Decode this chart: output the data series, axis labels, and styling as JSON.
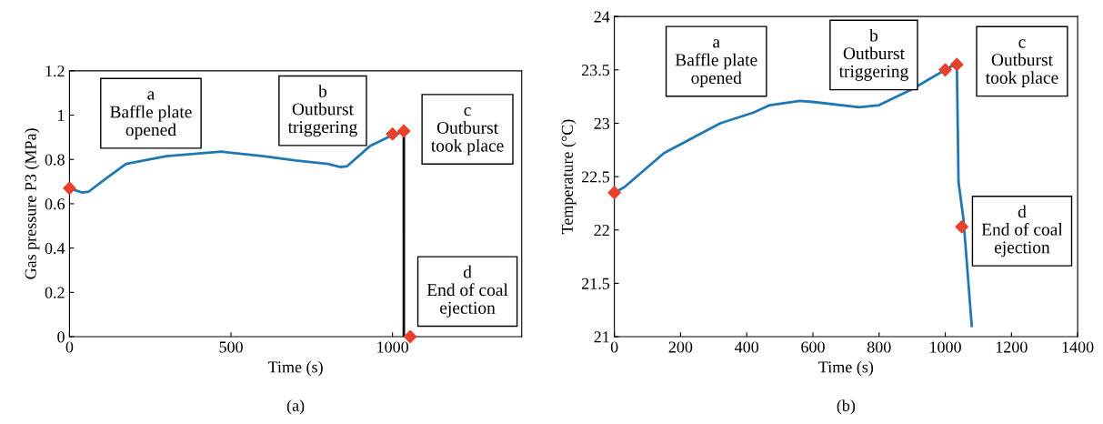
{
  "chart_data": [
    {
      "type": "line",
      "xlabel": "Time (s)",
      "ylabel": "Gas pressure P3 (MPa)",
      "xlim": [
        0,
        1400
      ],
      "xticks": [
        0,
        500,
        1000
      ],
      "ylim": [
        0,
        1.2
      ],
      "yticks": [
        0,
        0.2,
        0.4,
        0.6,
        0.8,
        1,
        1.2
      ],
      "grid": false,
      "legend": false,
      "series": [
        {
          "color": "#1f77b4",
          "x": [
            0,
            40,
            60,
            100,
            175,
            300,
            470,
            600,
            700,
            800,
            840,
            860,
            930,
            1000,
            1035
          ],
          "values": [
            0.67,
            0.65,
            0.655,
            0.7,
            0.78,
            0.815,
            0.835,
            0.815,
            0.795,
            0.78,
            0.765,
            0.77,
            0.86,
            0.91,
            0.925
          ]
        },
        {
          "type": "line",
          "color": "#000000",
          "x": [
            1035,
            1035
          ],
          "values": [
            0.925,
            0
          ]
        },
        {
          "type": "scatter",
          "marker": "diamond",
          "color": "#e8412c",
          "x": [
            0,
            1000,
            1035,
            1055
          ],
          "values": [
            0.67,
            0.915,
            0.928,
            0
          ]
        }
      ],
      "annotations": [
        "a\nBaffle plate\nopened",
        "b\nOutburst\ntriggering",
        "c\nOutburst\ntook place",
        "d\nEnd of coal\nejection",
        "(a)"
      ]
    },
    {
      "type": "line",
      "xlabel": "Time (s)",
      "ylabel": "Temperature (°C)",
      "xlim": [
        0,
        1400
      ],
      "xticks": [
        0,
        200,
        400,
        600,
        800,
        1000,
        1200,
        1400
      ],
      "ylim": [
        21,
        24
      ],
      "yticks": [
        21,
        21.5,
        22,
        22.5,
        23,
        23.5,
        24
      ],
      "grid": false,
      "legend": false,
      "series": [
        {
          "color": "#1f77b4",
          "x": [
            0,
            30,
            150,
            320,
            420,
            470,
            560,
            600,
            740,
            800,
            900,
            1000,
            1035,
            1040,
            1055,
            1065,
            1080
          ],
          "values": [
            22.35,
            22.4,
            22.72,
            23.0,
            23.1,
            23.17,
            23.21,
            23.2,
            23.15,
            23.17,
            23.32,
            23.5,
            23.56,
            22.45,
            22.1,
            21.7,
            21.1
          ]
        },
        {
          "type": "scatter",
          "marker": "diamond",
          "color": "#e8412c",
          "x": [
            0,
            1000,
            1035,
            1050
          ],
          "values": [
            22.35,
            23.5,
            23.55,
            22.03
          ]
        }
      ],
      "annotations": [
        "a\nBaffle plate\nopened",
        "b\nOutburst\ntriggering",
        "c\nOutburst\ntook place",
        "d\nEnd of coal\nejection",
        "(b)"
      ]
    }
  ]
}
